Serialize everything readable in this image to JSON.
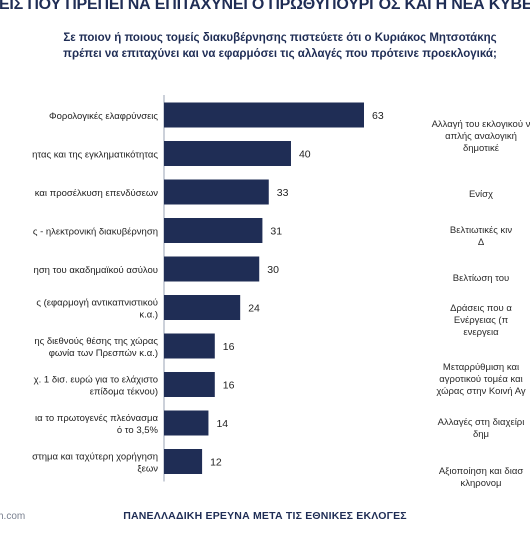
{
  "title": "ΜΕΙΣ ΠΟΥ ΠΡΕΠΕΙ ΝΑ ΕΠΙΤΑΧΥΝΕΙ Ο ΠΡΩΘΥΠΟΥΡΓΟΣ ΚΑΙ Η ΝΕΑ ΚΥΒΕΡΝ",
  "subtitle_lines": [
    "Σε ποιον ή ποιους τομείς διακυβέρνησης πιστεύετε ότι ο Κυριάκος Μητσοτάκης",
    "πρέπει να επιταχύνει και να εφαρμόσει τις αλλαγές που πρότεινε προεκλογικά;"
  ],
  "footer": "ΠΑΝΕΛΛΑΔΙΚΗ ΕΡΕΥΝΑ ΜΕΤΑ ΤΙΣ ΕΘΝΙΚΕΣ ΕΚΛΟΓΕΣ",
  "source_text": "h.com",
  "colors": {
    "bar": "#1f2d55",
    "title": "#1f2d55",
    "baseline": "#9aa3b5"
  },
  "chart_data": {
    "type": "bar",
    "orientation": "horizontal",
    "categories": [
      [
        "Φορολογικές ελαφρύνσεις"
      ],
      [
        "ητας και της εγκληματικότητας"
      ],
      [
        "και προσέλκυση επενδύσεων"
      ],
      [
        "ς - ηλεκτρονική διακυβέρνηση"
      ],
      [
        "ηση του ακαδημαϊκού ασύλου"
      ],
      [
        "ς (εφαρμογή αντικαπνιστικού",
        "κ.α.)"
      ],
      [
        "ης διεθνούς θέσης της χώρας",
        "φωνία των Πρεσπών κ.α.)"
      ],
      [
        "χ. 1 δισ. ευρώ για το ελάχιστο",
        "επίδομα τέκνου)"
      ],
      [
        "ια το πρωτογενές πλεόνασμα",
        "ό το 3,5%"
      ],
      [
        "στημα και ταχύτερη χορήγηση",
        "ξεων"
      ]
    ],
    "values": [
      63,
      40,
      33,
      31,
      30,
      24,
      16,
      16,
      14,
      12
    ],
    "xlim": [
      0,
      70
    ],
    "data_labels": true
  },
  "right_panel_labels": [
    [
      "Αλλαγή του εκλογικού ν",
      "απλής αναλογική",
      "δημοτικέ"
    ],
    [
      "Ενίσχ"
    ],
    [
      "Βελτιωτικές κιν",
      "Δ"
    ],
    [
      "Βελτίωση του"
    ],
    [
      "Δράσεις που α",
      "Ενέργειας (π",
      "ενεργεια"
    ],
    [
      "Μεταρρύθμιση και",
      "αγροτικού τομέα και",
      "χώρας στην Κοινή Αγ"
    ],
    [
      "Αλλαγές στη διαχείρι",
      "δημ"
    ],
    [
      "Αξιοποίηση και διασ",
      "κληρονομ"
    ]
  ]
}
